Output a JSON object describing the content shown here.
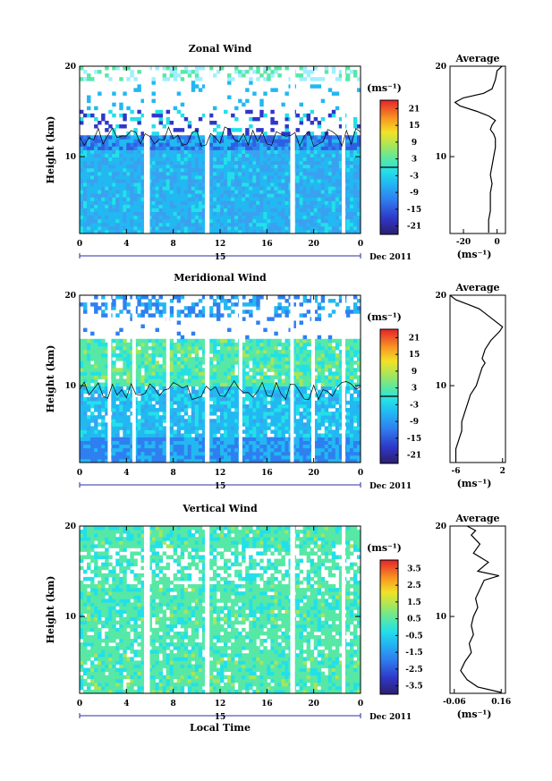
{
  "chart_data": [
    {
      "type": "heatmap",
      "title": "Zonal Wind",
      "ylabel": "Height (km)",
      "xlim": [
        0,
        24
      ],
      "ylim": [
        1.5,
        20
      ],
      "x_ticks": [
        "0",
        "4",
        "8",
        "12",
        "16",
        "20",
        "0"
      ],
      "y_ticks": [
        "10",
        "20"
      ],
      "date_label": "15",
      "date_suffix": "Dec 2011",
      "colorbar": {
        "unit": "(ms⁻¹)",
        "range": [
          -24,
          24
        ],
        "ticks": [
          "21",
          "15",
          "9",
          "3",
          "-3",
          "-9",
          "-15",
          "-21"
        ],
        "contour_at": 0
      },
      "data_gaps_hours": [
        [
          5.5,
          6.0
        ],
        [
          10.7,
          11.1
        ],
        [
          18.0,
          18.4
        ],
        [
          22.4,
          22.7
        ]
      ]
    },
    {
      "type": "line",
      "title": "Average",
      "xlabel": "(ms⁻¹)",
      "x_ticks": [
        "-20",
        "0"
      ],
      "y_ticks": [
        "10",
        "20"
      ],
      "xlim": [
        -28,
        5
      ],
      "ylim": [
        1.5,
        20
      ],
      "series": [
        {
          "x": [
            -5,
            -5,
            -4,
            -4,
            -4,
            -3,
            -4,
            -3,
            -2,
            -1,
            -1,
            -2,
            -4,
            -3,
            -1,
            -5,
            -12,
            -22,
            -25,
            -20,
            -8,
            -3,
            -1,
            0,
            3
          ],
          "y": [
            1.6,
            3,
            4,
            5,
            6,
            7,
            8,
            9,
            10,
            11,
            12,
            12.5,
            13,
            13.5,
            14,
            14.5,
            15,
            15.6,
            16,
            16.5,
            17,
            17.5,
            18.5,
            19.5,
            20
          ]
        }
      ]
    },
    {
      "type": "heatmap",
      "title": "Meridional Wind",
      "ylabel": "Height (km)",
      "xlim": [
        0,
        24
      ],
      "ylim": [
        1.5,
        20
      ],
      "x_ticks": [
        "0",
        "4",
        "8",
        "12",
        "16",
        "20",
        "0"
      ],
      "y_ticks": [
        "10",
        "20"
      ],
      "date_label": "15",
      "date_suffix": "Dec 2011",
      "colorbar": {
        "unit": "(ms⁻¹)",
        "range": [
          -24,
          24
        ],
        "ticks": [
          "21",
          "15",
          "9",
          "3",
          "-3",
          "-9",
          "-15",
          "-21"
        ],
        "contour_at": 0
      },
      "data_gaps_hours": [
        [
          2.4,
          2.7
        ],
        [
          4.5,
          4.8
        ],
        [
          7.4,
          7.7
        ],
        [
          10.7,
          11.1
        ],
        [
          13.6,
          13.9
        ],
        [
          18.0,
          18.3
        ],
        [
          19.8,
          20.1
        ],
        [
          22.4,
          22.7
        ]
      ]
    },
    {
      "type": "line",
      "title": "Average",
      "xlabel": "(ms⁻¹)",
      "x_ticks": [
        "-6",
        "2"
      ],
      "y_ticks": [
        "10",
        "20"
      ],
      "xlim": [
        -7,
        2.5
      ],
      "ylim": [
        1.5,
        20
      ],
      "series": [
        {
          "x": [
            -6,
            -6,
            -5.5,
            -5,
            -5,
            -4.5,
            -4,
            -3.5,
            -2.5,
            -2,
            -1.5,
            -1,
            -1.5,
            -1,
            0,
            1.5,
            2,
            1,
            -1,
            -2,
            -4,
            -6,
            -7
          ],
          "y": [
            1.6,
            3,
            4,
            5,
            6,
            7,
            8,
            9,
            10,
            11,
            12,
            12.5,
            13,
            14,
            15,
            16,
            16.5,
            17,
            18,
            18.5,
            19,
            19.5,
            20
          ]
        }
      ]
    },
    {
      "type": "heatmap",
      "title": "Vertical Wind",
      "xlabel": "Local Time",
      "ylabel": "Height (km)",
      "xlim": [
        0,
        24
      ],
      "ylim": [
        1.5,
        20
      ],
      "x_ticks": [
        "0",
        "4",
        "8",
        "12",
        "16",
        "20",
        "0"
      ],
      "y_ticks": [
        "10",
        "20"
      ],
      "date_label": "15",
      "date_suffix": "Dec 2011",
      "colorbar": {
        "unit": "(ms⁻¹)",
        "range": [
          -4,
          4
        ],
        "ticks": [
          "3.5",
          "2.5",
          "1.5",
          "0.5",
          "-0.5",
          "-1.5",
          "-2.5",
          "-3.5"
        ]
      },
      "data_gaps_hours": [
        [
          5.5,
          6.0
        ],
        [
          10.7,
          11.1
        ],
        [
          18.0,
          18.4
        ],
        [
          22.4,
          22.7
        ]
      ]
    },
    {
      "type": "line",
      "title": "Average",
      "xlabel": "(ms⁻¹)",
      "x_ticks": [
        "-0.06",
        "0.16"
      ],
      "y_ticks": [
        "10",
        "20"
      ],
      "xlim": [
        -0.08,
        0.18
      ],
      "ylim": [
        1.5,
        20
      ],
      "series": [
        {
          "x": [
            0.16,
            0.05,
            0,
            -0.03,
            -0.01,
            0.02,
            0.01,
            0.03,
            0.02,
            0.03,
            0.05,
            0.04,
            0.06,
            0.08,
            0.15,
            0.05,
            0.1,
            0.03,
            0.06,
            0.02,
            0.04,
            0.0
          ],
          "y": [
            1.6,
            2.2,
            3,
            4,
            5,
            6,
            7,
            8,
            9,
            10,
            11,
            12,
            13,
            14,
            14.5,
            15,
            16,
            17,
            18,
            19,
            19.5,
            20
          ]
        }
      ]
    }
  ]
}
